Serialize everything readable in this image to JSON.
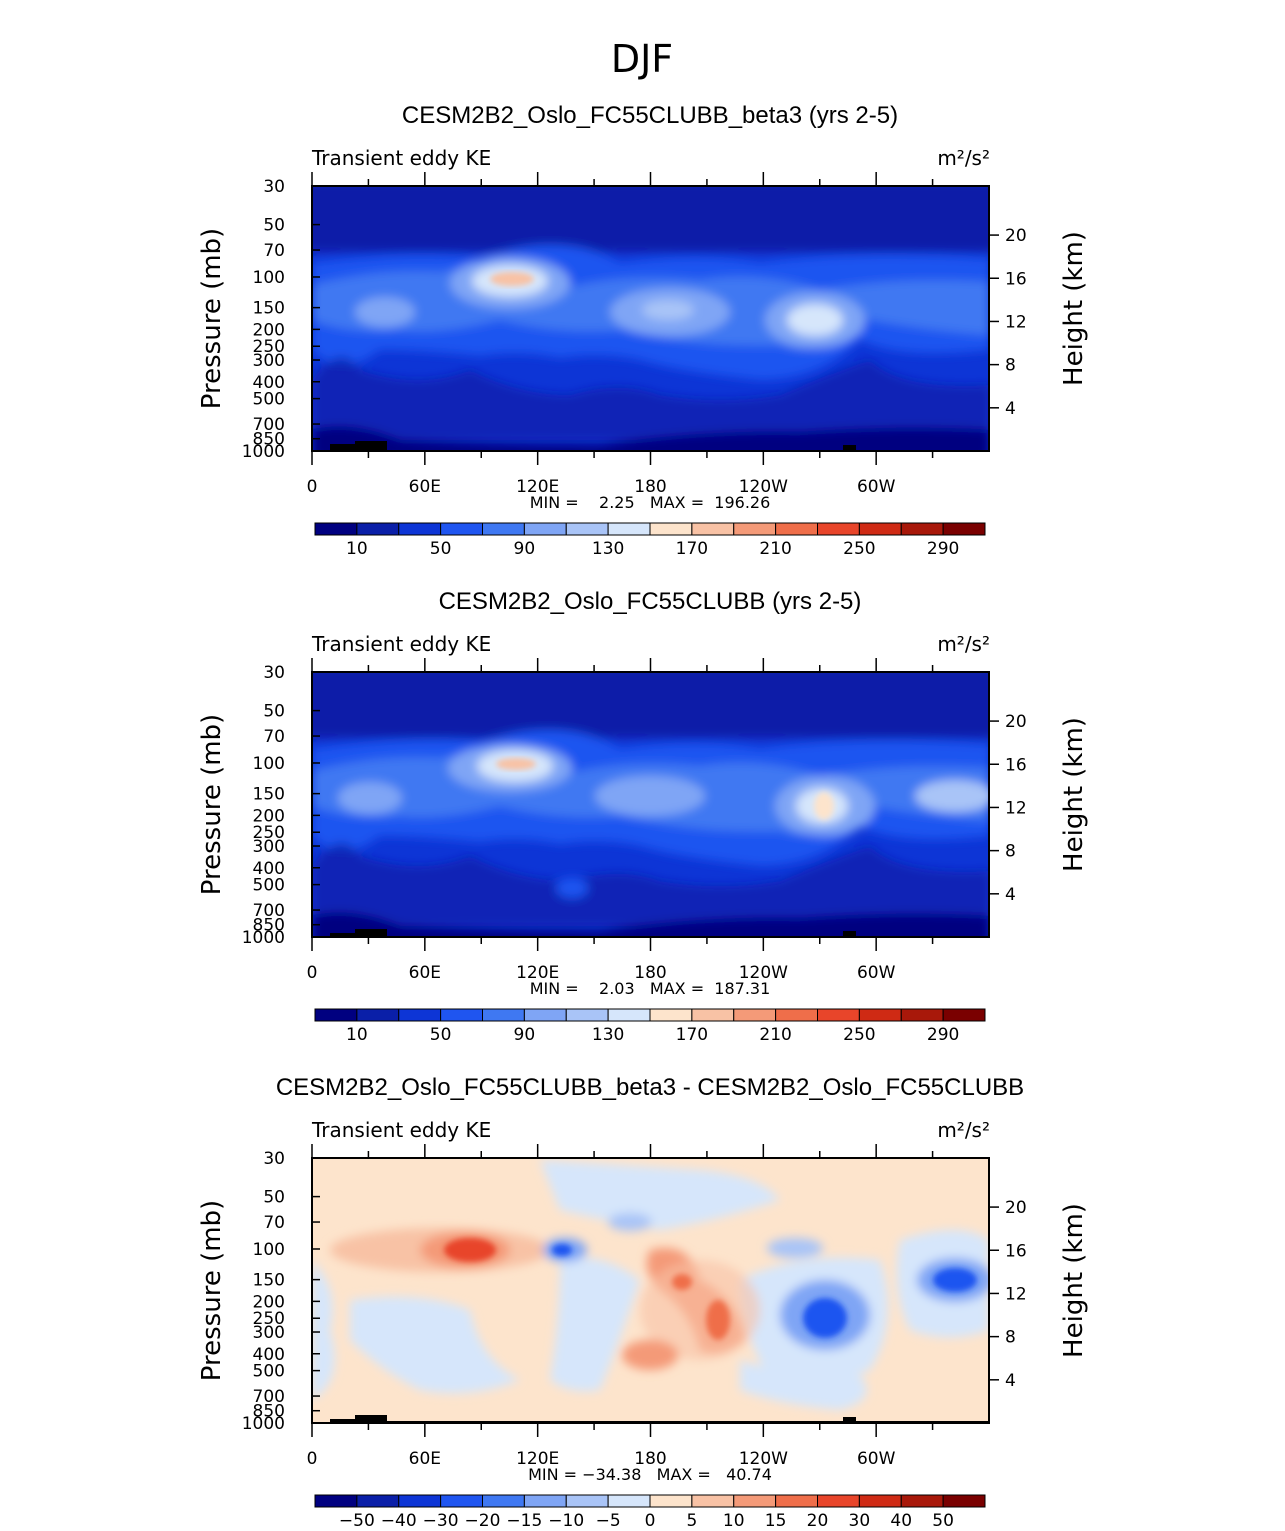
{
  "figure_title": "DJF",
  "chart_data": [
    {
      "type": "heatmap",
      "title": "CESM2B2_Oslo_FC55CLUBB_beta3 (yrs 2-5)",
      "left_label": "Transient eddy KE",
      "units_label": "m²/s²",
      "ylabel": "Pressure (mb)",
      "ylabel2": "Height (km)",
      "y_ticks": [
        "30",
        "50",
        "70",
        "100",
        "150",
        "200",
        "250",
        "300",
        "400",
        "500",
        "700",
        "850",
        "1000"
      ],
      "y2_ticks": [
        "20",
        "16",
        "12",
        "8",
        "4"
      ],
      "x_ticks": [
        "0",
        "60E",
        "120E",
        "180",
        "120W",
        "60W"
      ],
      "stats": "MIN =    2.25   MAX =  196.26",
      "colorbar_labels": [
        "10",
        "50",
        "90",
        "130",
        "170",
        "210",
        "250",
        "290"
      ],
      "min": 2.25,
      "max": 196.26
    },
    {
      "type": "heatmap",
      "title": "CESM2B2_Oslo_FC55CLUBB (yrs 2-5)",
      "left_label": "Transient eddy KE",
      "units_label": "m²/s²",
      "ylabel": "Pressure (mb)",
      "ylabel2": "Height (km)",
      "y_ticks": [
        "30",
        "50",
        "70",
        "100",
        "150",
        "200",
        "250",
        "300",
        "400",
        "500",
        "700",
        "850",
        "1000"
      ],
      "y2_ticks": [
        "20",
        "16",
        "12",
        "8",
        "4"
      ],
      "x_ticks": [
        "0",
        "60E",
        "120E",
        "180",
        "120W",
        "60W"
      ],
      "stats": "MIN =    2.03   MAX =  187.31",
      "colorbar_labels": [
        "10",
        "50",
        "90",
        "130",
        "170",
        "210",
        "250",
        "290"
      ],
      "min": 2.03,
      "max": 187.31
    },
    {
      "type": "heatmap",
      "title": "CESM2B2_Oslo_FC55CLUBB_beta3 - CESM2B2_Oslo_FC55CLUBB",
      "left_label": "Transient eddy KE",
      "units_label": "m²/s²",
      "ylabel": "Pressure (mb)",
      "ylabel2": "Height (km)",
      "y_ticks": [
        "30",
        "50",
        "70",
        "100",
        "150",
        "200",
        "250",
        "300",
        "400",
        "500",
        "700",
        "850",
        "1000"
      ],
      "y2_ticks": [
        "20",
        "16",
        "12",
        "8",
        "4"
      ],
      "x_ticks": [
        "0",
        "60E",
        "120E",
        "180",
        "120W",
        "60W"
      ],
      "stats": "MIN = −34.38   MAX =   40.74",
      "colorbar_labels": [
        "−50",
        "−40",
        "−30",
        "−20",
        "−15",
        "−10",
        "−5",
        "0",
        "5",
        "10",
        "15",
        "20",
        "30",
        "40",
        "50"
      ],
      "min": -34.38,
      "max": 40.74
    }
  ],
  "colors": {
    "abs_scale": [
      "#000080",
      "#0a1fa8",
      "#0d35d6",
      "#1f55f0",
      "#3f78f2",
      "#7fa5f5",
      "#a9c4f7",
      "#d6e6fb",
      "#fde4cc",
      "#f8c2a5",
      "#f49a78",
      "#ef6e4a",
      "#e8452a",
      "#cf2a14",
      "#a8180a",
      "#7a0000"
    ],
    "diff_scale": [
      "#000080",
      "#0a1fa8",
      "#0d35d6",
      "#1f55f0",
      "#3f78f2",
      "#7fa5f5",
      "#a9c4f7",
      "#d6e6fb",
      "#fde4cc",
      "#f8c2a5",
      "#f49a78",
      "#ef6e4a",
      "#e8452a",
      "#cf2a14",
      "#a8180a",
      "#7a0000"
    ]
  }
}
